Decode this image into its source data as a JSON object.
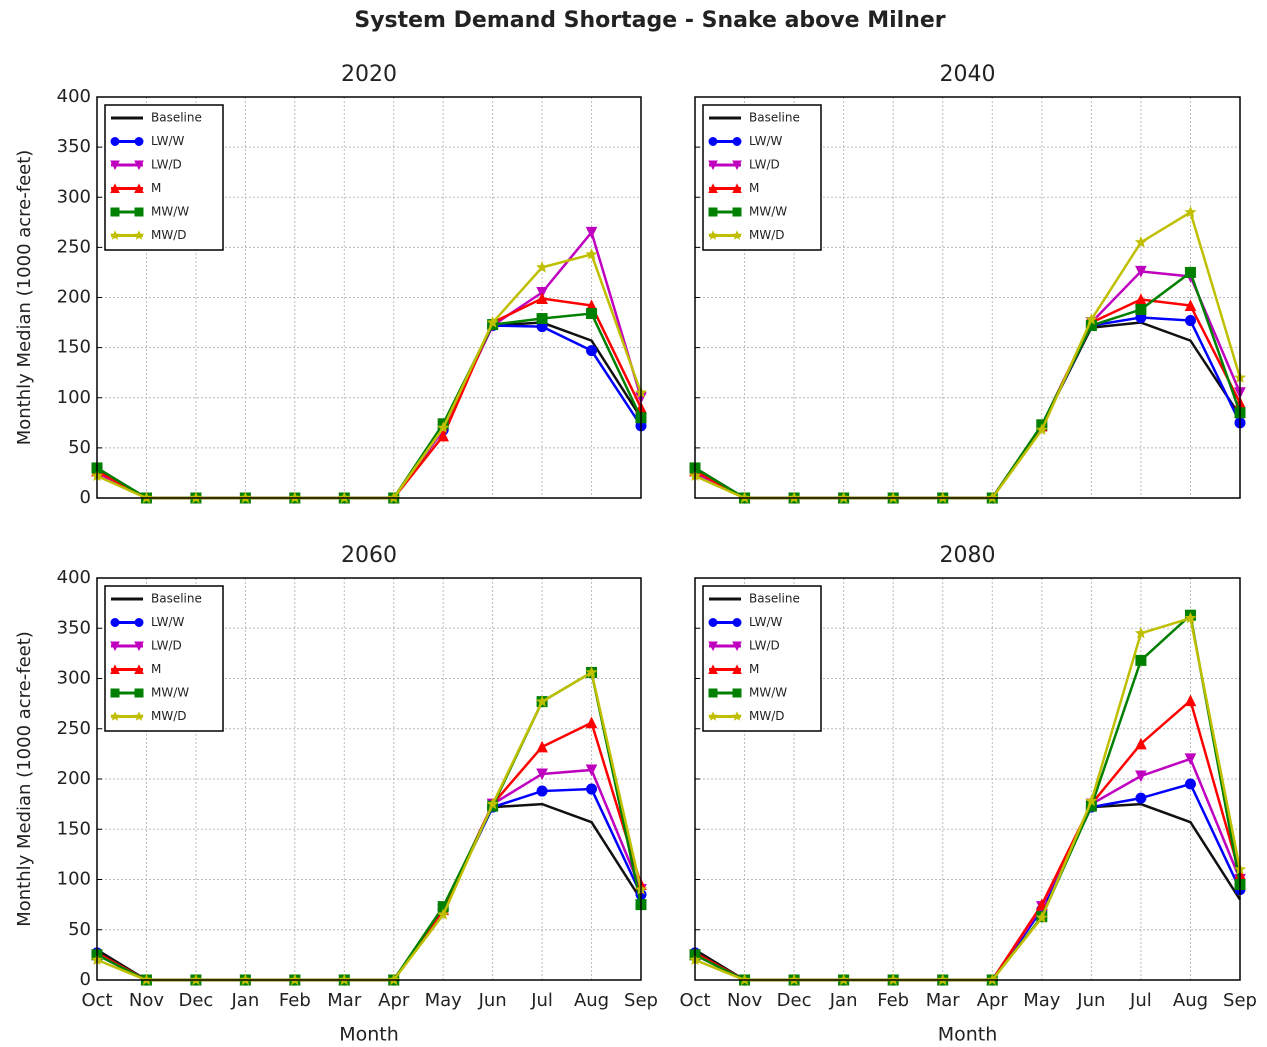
{
  "title": "System Demand Shortage - Snake above Milner",
  "chart_data": [
    {
      "type": "line",
      "title": "2020",
      "ylabel": "Monthly Median (1000 acre-feet)",
      "ylim": [
        0,
        400
      ],
      "yticks": [
        0,
        50,
        100,
        150,
        200,
        250,
        300,
        350,
        400
      ],
      "grid": true,
      "legend": "upper left",
      "series": [
        {
          "name": "Baseline",
          "color": "#111111",
          "values": [
            30,
            0,
            0,
            0,
            0,
            0,
            0,
            70,
            172,
            175,
            157,
            80
          ]
        },
        {
          "name": "LW/W",
          "color": "#0000ff",
          "marker": "o",
          "values": [
            28,
            0,
            0,
            0,
            0,
            0,
            0,
            68,
            172,
            171,
            147,
            72
          ]
        },
        {
          "name": "LW/D",
          "color": "#bf00bf",
          "marker": "v",
          "values": [
            25,
            0,
            0,
            0,
            0,
            0,
            0,
            68,
            172,
            205,
            265,
            100
          ]
        },
        {
          "name": "M",
          "color": "#ff0000",
          "marker": "^",
          "values": [
            27,
            0,
            0,
            0,
            0,
            0,
            0,
            62,
            175,
            199,
            192,
            90
          ]
        },
        {
          "name": "MW/W",
          "color": "#008000",
          "marker": "s",
          "values": [
            30,
            0,
            0,
            0,
            0,
            0,
            0,
            74,
            173,
            179,
            184,
            80
          ]
        },
        {
          "name": "MW/D",
          "color": "#bfbf00",
          "marker": "*",
          "values": [
            22,
            0,
            0,
            0,
            0,
            0,
            0,
            70,
            175,
            230,
            243,
            105
          ]
        }
      ]
    },
    {
      "type": "line",
      "title": "2040",
      "ylim": [
        0,
        400
      ],
      "yticks": [
        0,
        50,
        100,
        150,
        200,
        250,
        300,
        350,
        400
      ],
      "grid": true,
      "legend": "upper left",
      "series": [
        {
          "name": "Baseline",
          "color": "#111111",
          "values": [
            30,
            0,
            0,
            0,
            0,
            0,
            0,
            72,
            170,
            175,
            157,
            82
          ]
        },
        {
          "name": "LW/W",
          "color": "#0000ff",
          "marker": "o",
          "values": [
            28,
            0,
            0,
            0,
            0,
            0,
            0,
            72,
            172,
            180,
            177,
            75
          ]
        },
        {
          "name": "LW/D",
          "color": "#bf00bf",
          "marker": "v",
          "values": [
            25,
            0,
            0,
            0,
            0,
            0,
            0,
            72,
            175,
            226,
            221,
            105
          ]
        },
        {
          "name": "M",
          "color": "#ff0000",
          "marker": "^",
          "values": [
            27,
            0,
            0,
            0,
            0,
            0,
            0,
            72,
            175,
            198,
            192,
            95
          ]
        },
        {
          "name": "MW/W",
          "color": "#008000",
          "marker": "s",
          "values": [
            30,
            0,
            0,
            0,
            0,
            0,
            0,
            73,
            172,
            188,
            225,
            85
          ]
        },
        {
          "name": "MW/D",
          "color": "#bfbf00",
          "marker": "*",
          "values": [
            22,
            0,
            0,
            0,
            0,
            0,
            0,
            68,
            178,
            255,
            285,
            120
          ]
        }
      ]
    },
    {
      "type": "line",
      "title": "2060",
      "ylabel": "Monthly Median (1000 acre-feet)",
      "xlabel": "Month",
      "categories": [
        "Oct",
        "Nov",
        "Dec",
        "Jan",
        "Feb",
        "Mar",
        "Apr",
        "May",
        "Jun",
        "Jul",
        "Aug",
        "Sep"
      ],
      "ylim": [
        0,
        400
      ],
      "yticks": [
        0,
        50,
        100,
        150,
        200,
        250,
        300,
        350,
        400
      ],
      "grid": true,
      "legend": "upper left",
      "series": [
        {
          "name": "Baseline",
          "color": "#111111",
          "values": [
            30,
            0,
            0,
            0,
            0,
            0,
            0,
            70,
            172,
            175,
            157,
            80
          ]
        },
        {
          "name": "LW/W",
          "color": "#0000ff",
          "marker": "o",
          "values": [
            27,
            0,
            0,
            0,
            0,
            0,
            0,
            70,
            172,
            188,
            190,
            85
          ]
        },
        {
          "name": "LW/D",
          "color": "#bf00bf",
          "marker": "v",
          "values": [
            25,
            0,
            0,
            0,
            0,
            0,
            0,
            70,
            175,
            205,
            209,
            90
          ]
        },
        {
          "name": "M",
          "color": "#ff0000",
          "marker": "^",
          "values": [
            27,
            0,
            0,
            0,
            0,
            0,
            0,
            70,
            175,
            232,
            256,
            95
          ]
        },
        {
          "name": "MW/W",
          "color": "#008000",
          "marker": "s",
          "values": [
            25,
            0,
            0,
            0,
            0,
            0,
            0,
            73,
            173,
            277,
            306,
            75
          ]
        },
        {
          "name": "MW/D",
          "color": "#bfbf00",
          "marker": "*",
          "values": [
            20,
            0,
            0,
            0,
            0,
            0,
            0,
            65,
            175,
            277,
            306,
            90
          ]
        }
      ]
    },
    {
      "type": "line",
      "title": "2080",
      "xlabel": "Month",
      "categories": [
        "Oct",
        "Nov",
        "Dec",
        "Jan",
        "Feb",
        "Mar",
        "Apr",
        "May",
        "Jun",
        "Jul",
        "Aug",
        "Sep"
      ],
      "ylim": [
        0,
        400
      ],
      "yticks": [
        0,
        50,
        100,
        150,
        200,
        250,
        300,
        350,
        400
      ],
      "grid": true,
      "legend": "upper left",
      "series": [
        {
          "name": "Baseline",
          "color": "#111111",
          "values": [
            30,
            0,
            0,
            0,
            0,
            0,
            0,
            70,
            172,
            175,
            157,
            80
          ]
        },
        {
          "name": "LW/W",
          "color": "#0000ff",
          "marker": "o",
          "values": [
            27,
            0,
            0,
            0,
            0,
            0,
            0,
            70,
            172,
            181,
            195,
            90
          ]
        },
        {
          "name": "LW/D",
          "color": "#bf00bf",
          "marker": "v",
          "values": [
            25,
            0,
            0,
            0,
            0,
            0,
            0,
            73,
            175,
            203,
            220,
            100
          ]
        },
        {
          "name": "M",
          "color": "#ff0000",
          "marker": "^",
          "values": [
            27,
            0,
            0,
            0,
            0,
            0,
            0,
            75,
            175,
            235,
            278,
            105
          ]
        },
        {
          "name": "MW/W",
          "color": "#008000",
          "marker": "s",
          "values": [
            25,
            0,
            0,
            0,
            0,
            0,
            0,
            63,
            173,
            318,
            363,
            95
          ]
        },
        {
          "name": "MW/D",
          "color": "#bfbf00",
          "marker": "*",
          "values": [
            20,
            0,
            0,
            0,
            0,
            0,
            0,
            62,
            178,
            345,
            360,
            110
          ]
        }
      ]
    }
  ]
}
